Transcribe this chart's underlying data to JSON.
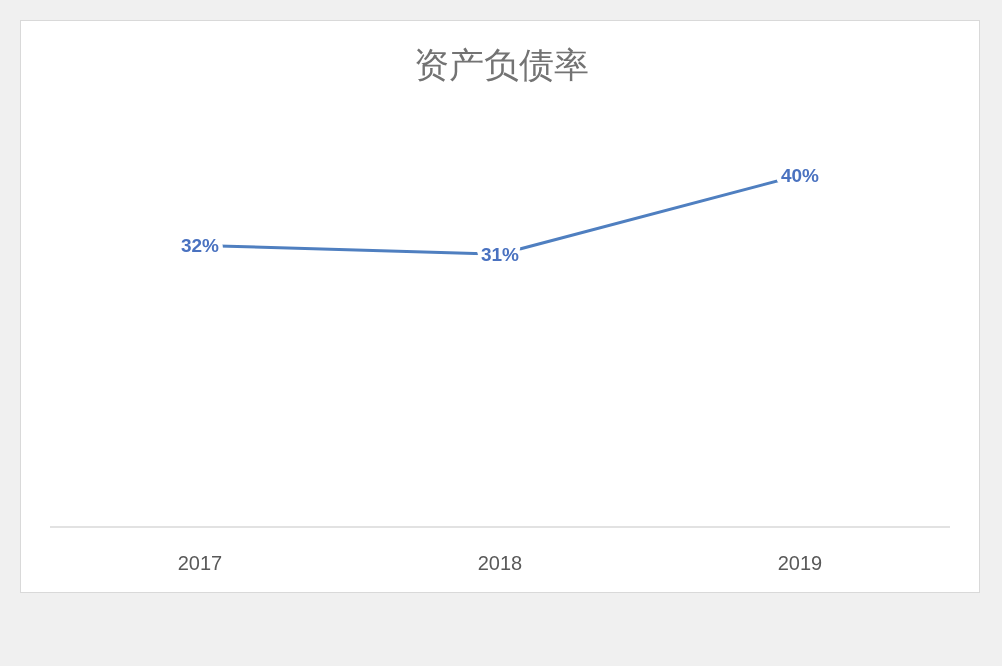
{
  "chart_data": {
    "type": "line",
    "title": "资产负债率",
    "categories": [
      "2017",
      "2018",
      "2019"
    ],
    "series": [
      {
        "color": "#4f7fc0",
        "values": [
          32,
          31,
          40
        ],
        "value_labels": [
          "32%",
          "31%",
          "40%"
        ]
      }
    ],
    "tick_labels": "x"
  }
}
